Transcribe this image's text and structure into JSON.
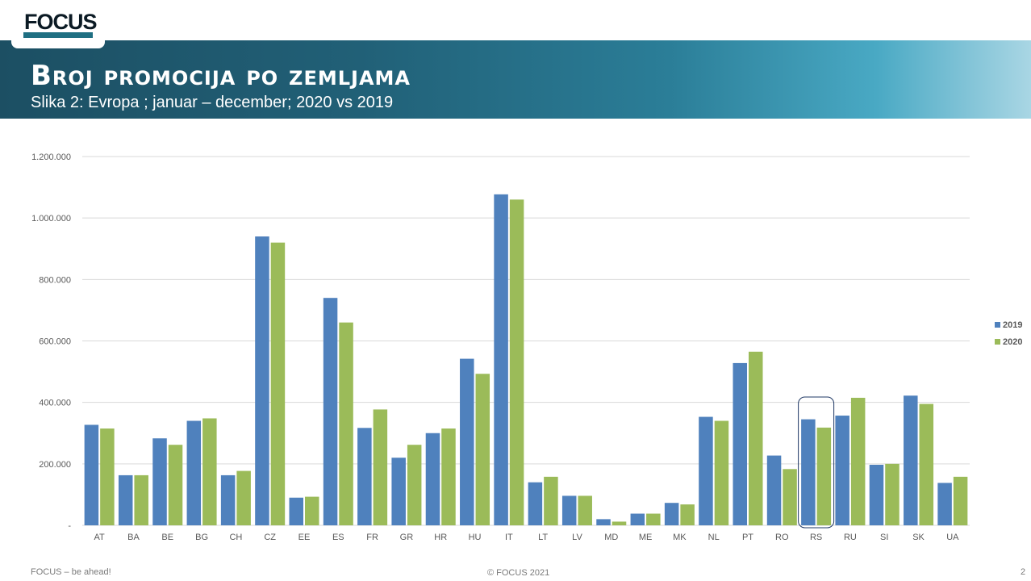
{
  "logo_text": "FOCUS",
  "header": {
    "title": "Broj promocija po zemljama",
    "subtitle": "Slika 2: Evropa ; januar – december; 2020 vs 2019"
  },
  "footer": {
    "left": "FOCUS – be ahead!",
    "center": "© FOCUS 2021",
    "page_number": "2"
  },
  "colors": {
    "series_2019": "#4f81bd",
    "series_2020": "#9bbb59",
    "highlight_box": "#1f3864",
    "gridline": "#d9d9d9"
  },
  "chart_data": {
    "type": "bar",
    "categories": [
      "AT",
      "BA",
      "BE",
      "BG",
      "CH",
      "CZ",
      "EE",
      "ES",
      "FR",
      "GR",
      "HR",
      "HU",
      "IT",
      "LT",
      "LV",
      "MD",
      "ME",
      "MK",
      "NL",
      "PT",
      "RO",
      "RS",
      "RU",
      "SI",
      "SK",
      "UA"
    ],
    "series": [
      {
        "name": "2019",
        "values": [
          327000,
          163000,
          283000,
          340000,
          163000,
          940000,
          90000,
          740000,
          317000,
          220000,
          300000,
          542000,
          1077000,
          140000,
          96000,
          20000,
          38000,
          73000,
          353000,
          528000,
          227000,
          345000,
          357000,
          197000,
          422000,
          138000
        ]
      },
      {
        "name": "2020",
        "values": [
          315000,
          163000,
          262000,
          348000,
          177000,
          920000,
          93000,
          660000,
          377000,
          262000,
          315000,
          493000,
          1060000,
          158000,
          96000,
          12000,
          38000,
          68000,
          340000,
          565000,
          183000,
          318000,
          415000,
          200000,
          395000,
          158000
        ]
      }
    ],
    "ylim": [
      0,
      1200000
    ],
    "yticks": [
      {
        "value": 0,
        "label": "-"
      },
      {
        "value": 200000,
        "label": "200.000"
      },
      {
        "value": 400000,
        "label": "400.000"
      },
      {
        "value": 600000,
        "label": "600.000"
      },
      {
        "value": 800000,
        "label": "800.000"
      },
      {
        "value": 1000000,
        "label": "1.000.000"
      },
      {
        "value": 1200000,
        "label": "1.200.000"
      }
    ],
    "legend_position": "right",
    "highlighted_category": "RS",
    "grid": true
  }
}
